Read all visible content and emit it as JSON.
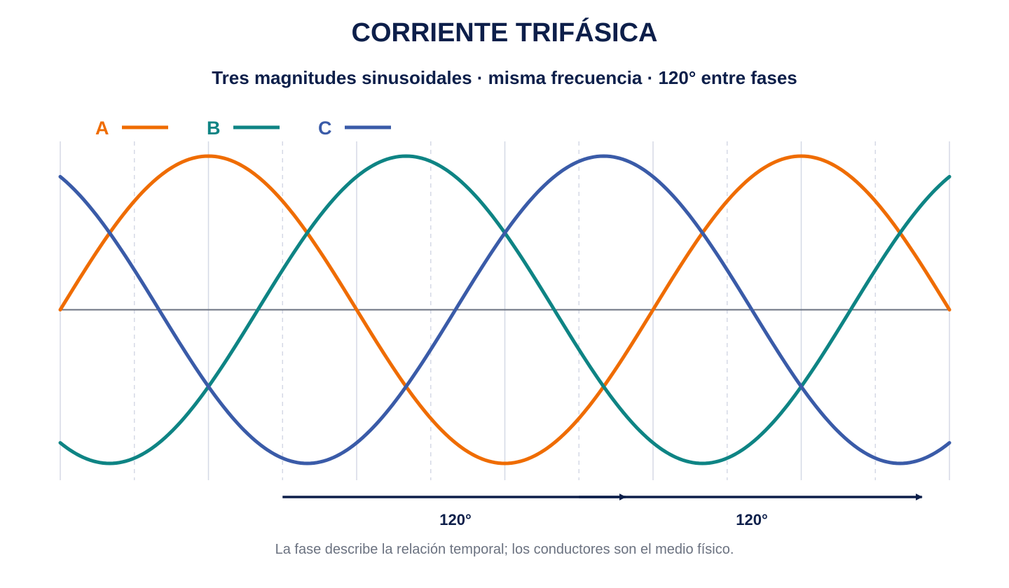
{
  "header": {
    "title": "CORRIENTE TRIFÁSICA",
    "subtitle": "Tres magnitudes sinusoidales · misma frecuencia · 120° entre fases"
  },
  "footnote": "La fase describe la relación temporal; los conductores son el medio físico.",
  "chart_data": {
    "type": "line",
    "title": "CORRIENTE TRIFÁSICA",
    "subtitle": "Tres magnitudes sinusoidales · misma frecuencia · 120° entre fases",
    "xlabel": "",
    "ylabel": "",
    "x_unit": "degrees",
    "xlim": [
      0,
      540
    ],
    "ylim": [
      -1,
      1
    ],
    "grid": {
      "vertical_solid_every_deg": 90,
      "vertical_dashed_every_deg": 90,
      "dashed_offset_deg": 45
    },
    "baseline": 0,
    "legend_position": "top-left",
    "series": [
      {
        "name": "A",
        "color": "#ef6c00",
        "phase_deg": 0,
        "amplitude": 1
      },
      {
        "name": "B",
        "color": "#0e8484",
        "phase_deg": -120,
        "amplitude": 1
      },
      {
        "name": "C",
        "color": "#3a5ba8",
        "phase_deg": 120,
        "amplitude": 1
      }
    ],
    "annotations": [
      {
        "label": "120°",
        "from_deg": 135,
        "to_deg": 345
      },
      {
        "label": "120°",
        "from_deg": 315,
        "to_deg": 525
      }
    ],
    "colors": {
      "axis": "#6b7280",
      "grid": "#d5d9e6",
      "annotation": "#0d1f4a"
    }
  }
}
